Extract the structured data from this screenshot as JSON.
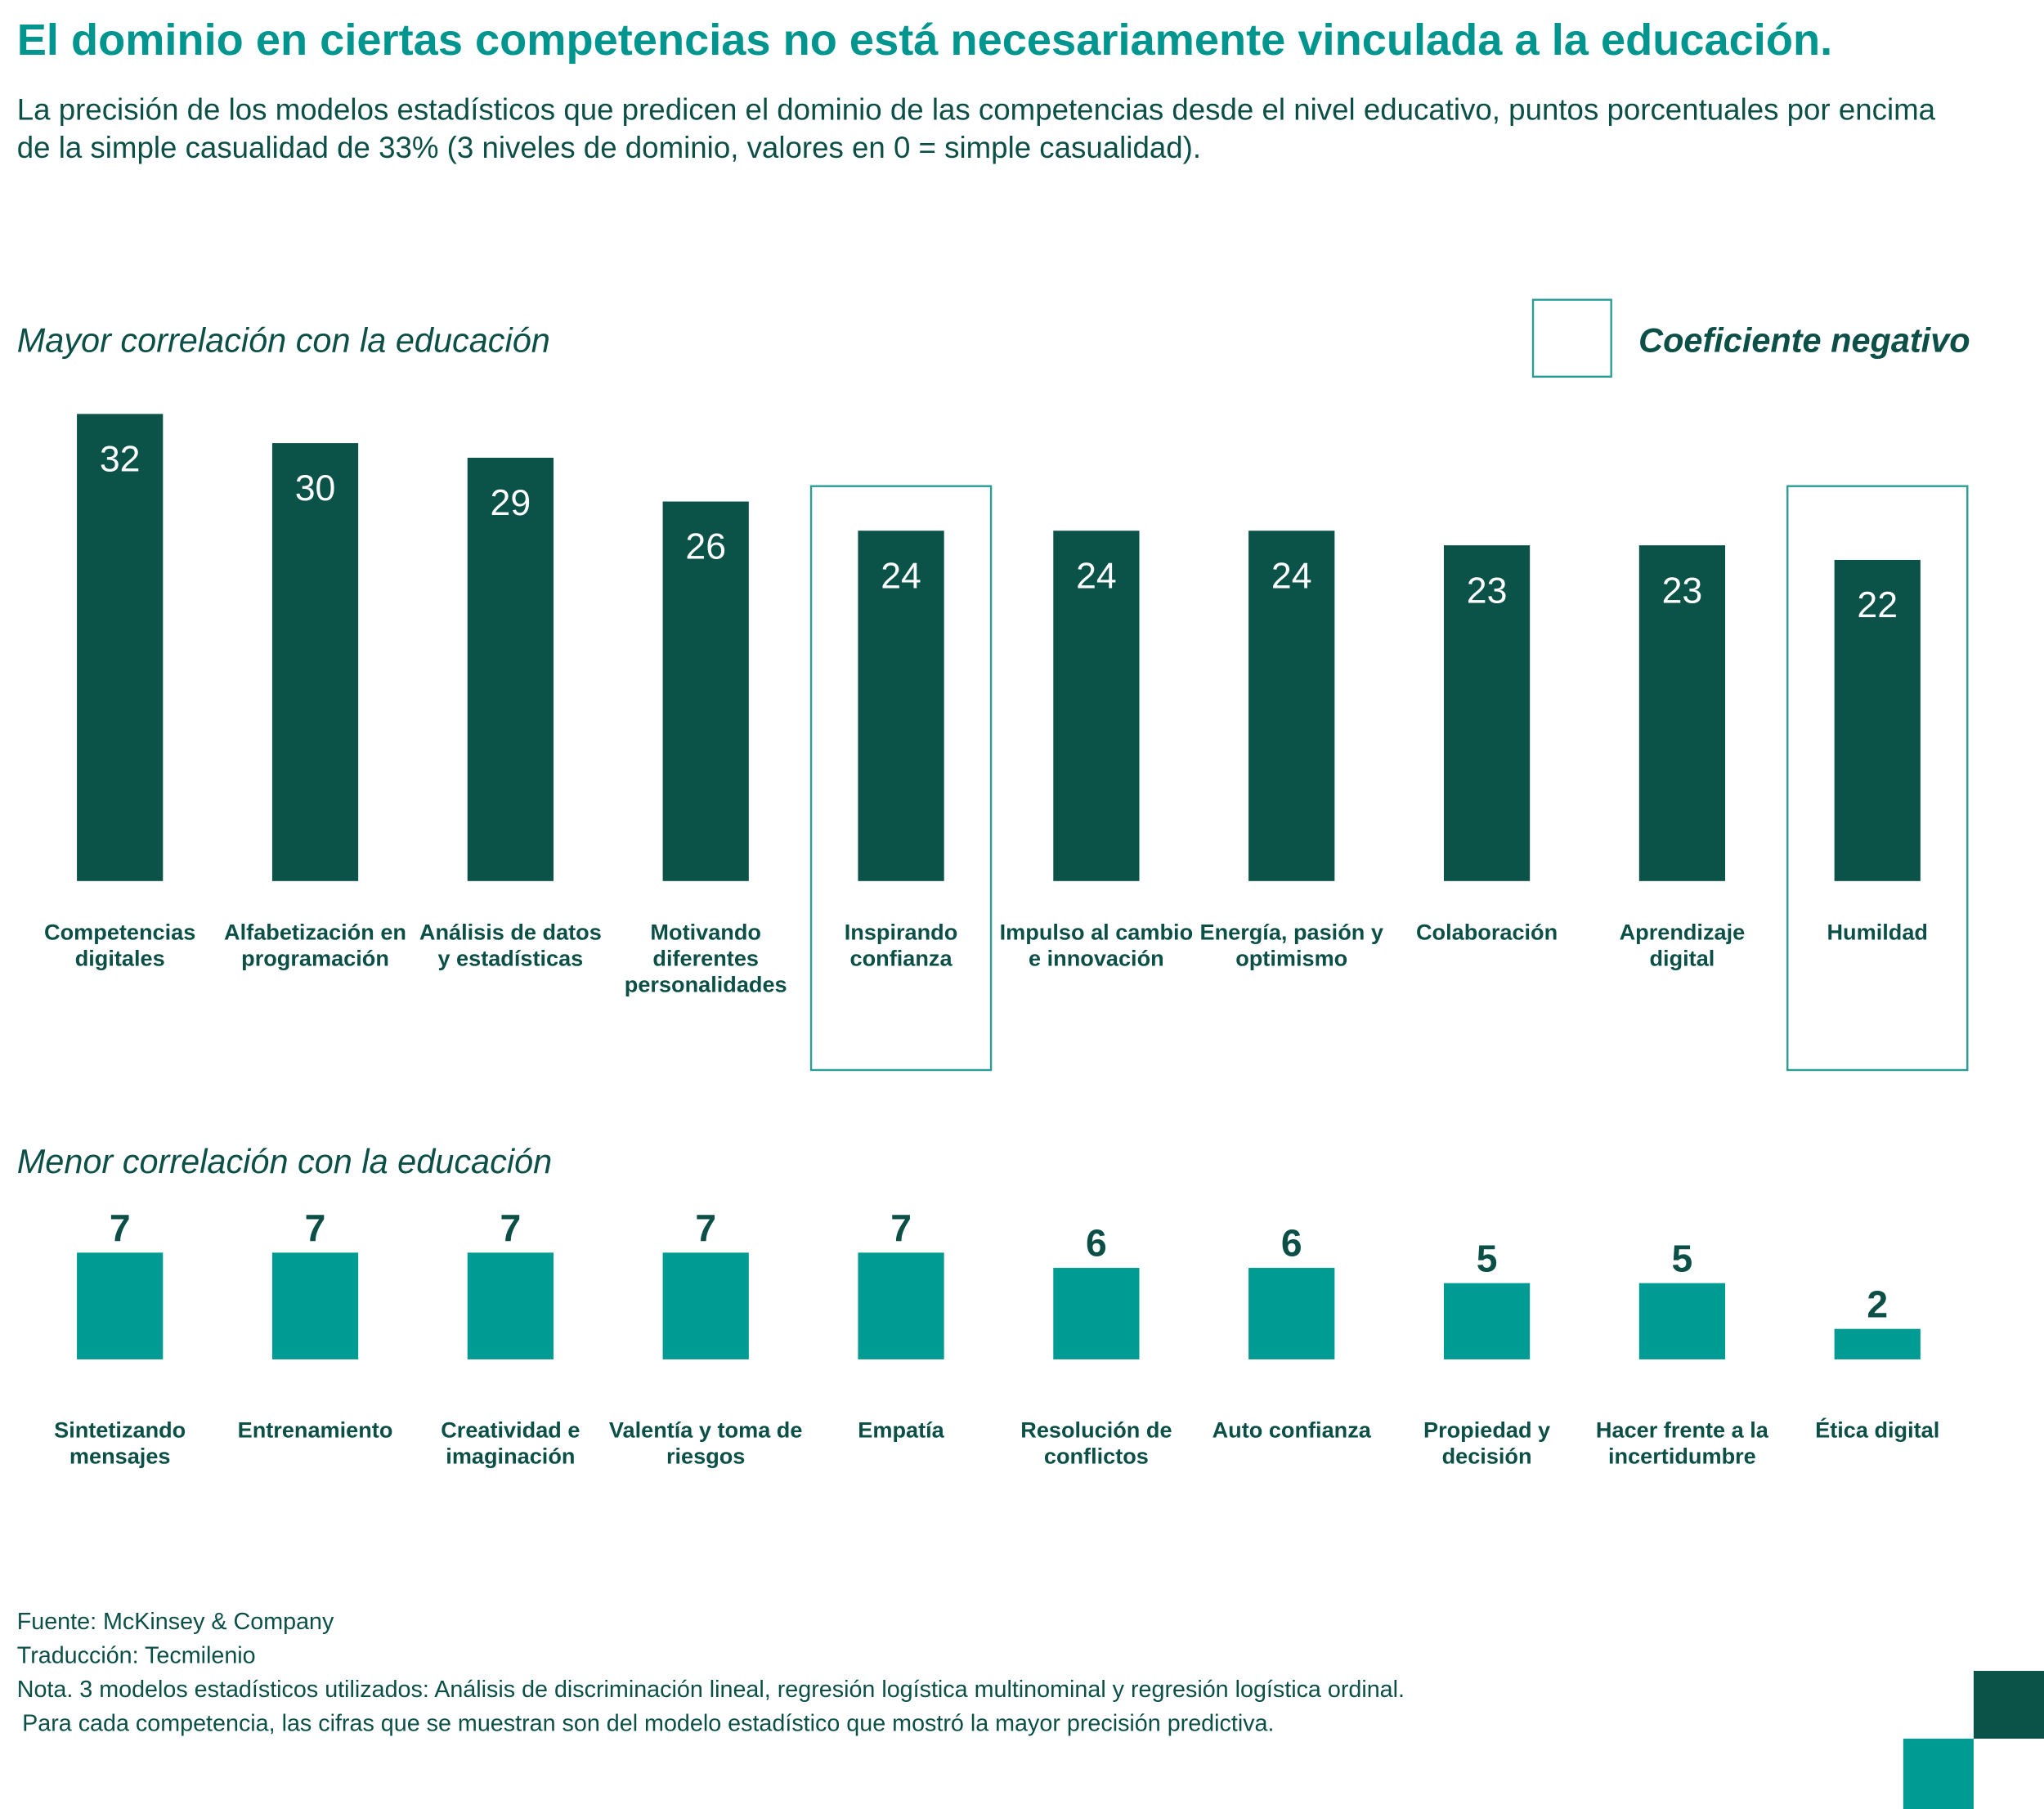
{
  "title": "El dominio en ciertas competencias no está necesariamente vinculada a la educación.",
  "subtitle": "La precisión de los modelos estadísticos que predicen el dominio de las competencias desde el nivel educativo, puntos porcentuales por encima de la simple casualidad de 33% (3 niveles de dominio, valores en 0 = simple casualidad).",
  "legend": {
    "label": "Coeficiente negativo",
    "color": "#2a9d96"
  },
  "chart_data": [
    {
      "type": "bar",
      "title": "Mayor correlación con la educación",
      "color": "#0b5249",
      "categories": [
        "Competencias digitales",
        "Alfabetización en programación",
        "Análisis de datos y estadísticas",
        "Motivando diferentes personalidades",
        "Inspirando confianza",
        "Impulso al cambio e innovación",
        "Energía, pasión y optimismo",
        "Colaboración",
        "Aprendizaje digital",
        "Humildad"
      ],
      "values": [
        32,
        30,
        29,
        26,
        24,
        24,
        24,
        23,
        23,
        22
      ],
      "negative": [
        false,
        false,
        false,
        false,
        true,
        false,
        false,
        false,
        false,
        true
      ]
    },
    {
      "type": "bar",
      "title": "Menor correlación con la educación",
      "color": "#009c94",
      "categories": [
        "Sintetizando mensajes",
        "Entrenamiento",
        "Creatividad e imaginación",
        "Valentía y toma de riesgos",
        "Empatía",
        "Resolución de conflictos",
        "Auto confianza",
        "Propiedad y decisión",
        "Hacer frente a la incertidumbre",
        "Ética digital"
      ],
      "values": [
        7,
        7,
        7,
        7,
        7,
        6,
        6,
        5,
        5,
        2
      ],
      "negative": [
        false,
        false,
        false,
        false,
        false,
        false,
        false,
        false,
        false,
        false
      ]
    }
  ],
  "footer": [
    "Fuente: McKinsey & Company",
    "Traducción: Tecmilenio",
    "Nota. 3 modelos estadísticos utilizados: Análisis de discriminación lineal, regresión logística multinominal y regresión logística ordinal.",
    "Para cada competencia, las cifras que se muestran son del modelo estadístico que mostró la mayor precisión predictiva."
  ]
}
